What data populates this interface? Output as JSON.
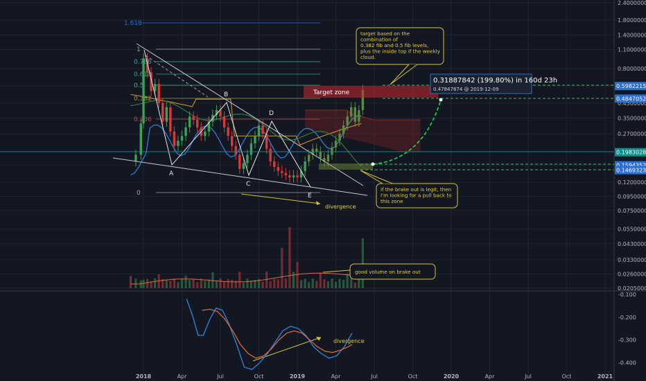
{
  "chart_data": {
    "type": "candlestick",
    "scale": "log",
    "ylim": [
      0.0205,
      2.4
    ],
    "y_ticks": [
      "2.40000000",
      "1.80000000",
      "1.40000000",
      "1.10000000",
      "0.80000000",
      "0.60000000",
      "0.45000000",
      "0.35000000",
      "0.27000000",
      "0.20000000",
      "0.16000000",
      "0.12000000",
      "0.09500000",
      "0.07500000",
      "0.05500000",
      "0.04300000",
      "0.03300000",
      "0.02600000",
      "0.02050000"
    ],
    "x_ticks": [
      "2018",
      "Apr",
      "Jul",
      "Oct",
      "2019",
      "Apr",
      "Jul",
      "Oct",
      "2020",
      "Apr",
      "Jul",
      "Oct",
      "2021"
    ],
    "price_badges": [
      {
        "value": 0.59822155,
        "label": "0.59822155",
        "color": "#2a6ecf"
      },
      {
        "value": 0.48470528,
        "label": "0.48470528",
        "color": "#2a6ecf"
      },
      {
        "value": 0.19830285,
        "label": "0.19830285",
        "color": "#0a8f8a"
      },
      {
        "value": 0.15943521,
        "label": "0.15943521",
        "color": "#2a6ecf"
      },
      {
        "value": 0.14693236,
        "label": "0.14693236",
        "color": "#2a6ecf"
      }
    ],
    "fib_levels": [
      {
        "label": "1.618",
        "color": "#2a6ecf"
      },
      {
        "label": "1",
        "color": "#9aa0aa"
      },
      {
        "label": "0.786",
        "color": "#3fa9a0"
      },
      {
        "label": "0.618",
        "color": "#2aa37a"
      },
      {
        "label": "0.5",
        "color": "#4fb070"
      },
      {
        "label": "0.382",
        "color": "#a0a040"
      },
      {
        "label": "0.236",
        "color": "#c0504a"
      },
      {
        "label": "0",
        "color": "#9aa0aa"
      }
    ],
    "pattern_points": [
      "A",
      "B",
      "C",
      "D",
      "E"
    ],
    "measure": {
      "headline": "0.31887842 (199.80%) in 160d 23h",
      "sub": "0.47847674  @ 2019-12-09"
    },
    "annotations": {
      "target_zone": "Target zone",
      "note_target": [
        "target based on the",
        "combination of",
        "0.382 fib and 0.5 fib levels,",
        "plus the inside top if the weekly",
        "cloud."
      ],
      "note_pullback": [
        "if the brake out is legit, then",
        "I'm looking for a pull back to",
        "this zone"
      ],
      "divergence_price": "divergence",
      "note_volume": "good volume on brake out",
      "divergence_osc": "divergence"
    },
    "oscillator": {
      "ylim": [
        -0.45,
        -0.1
      ],
      "y_ticks": [
        "-0.100",
        "-0.200",
        "-0.300",
        "-0.400"
      ]
    }
  }
}
